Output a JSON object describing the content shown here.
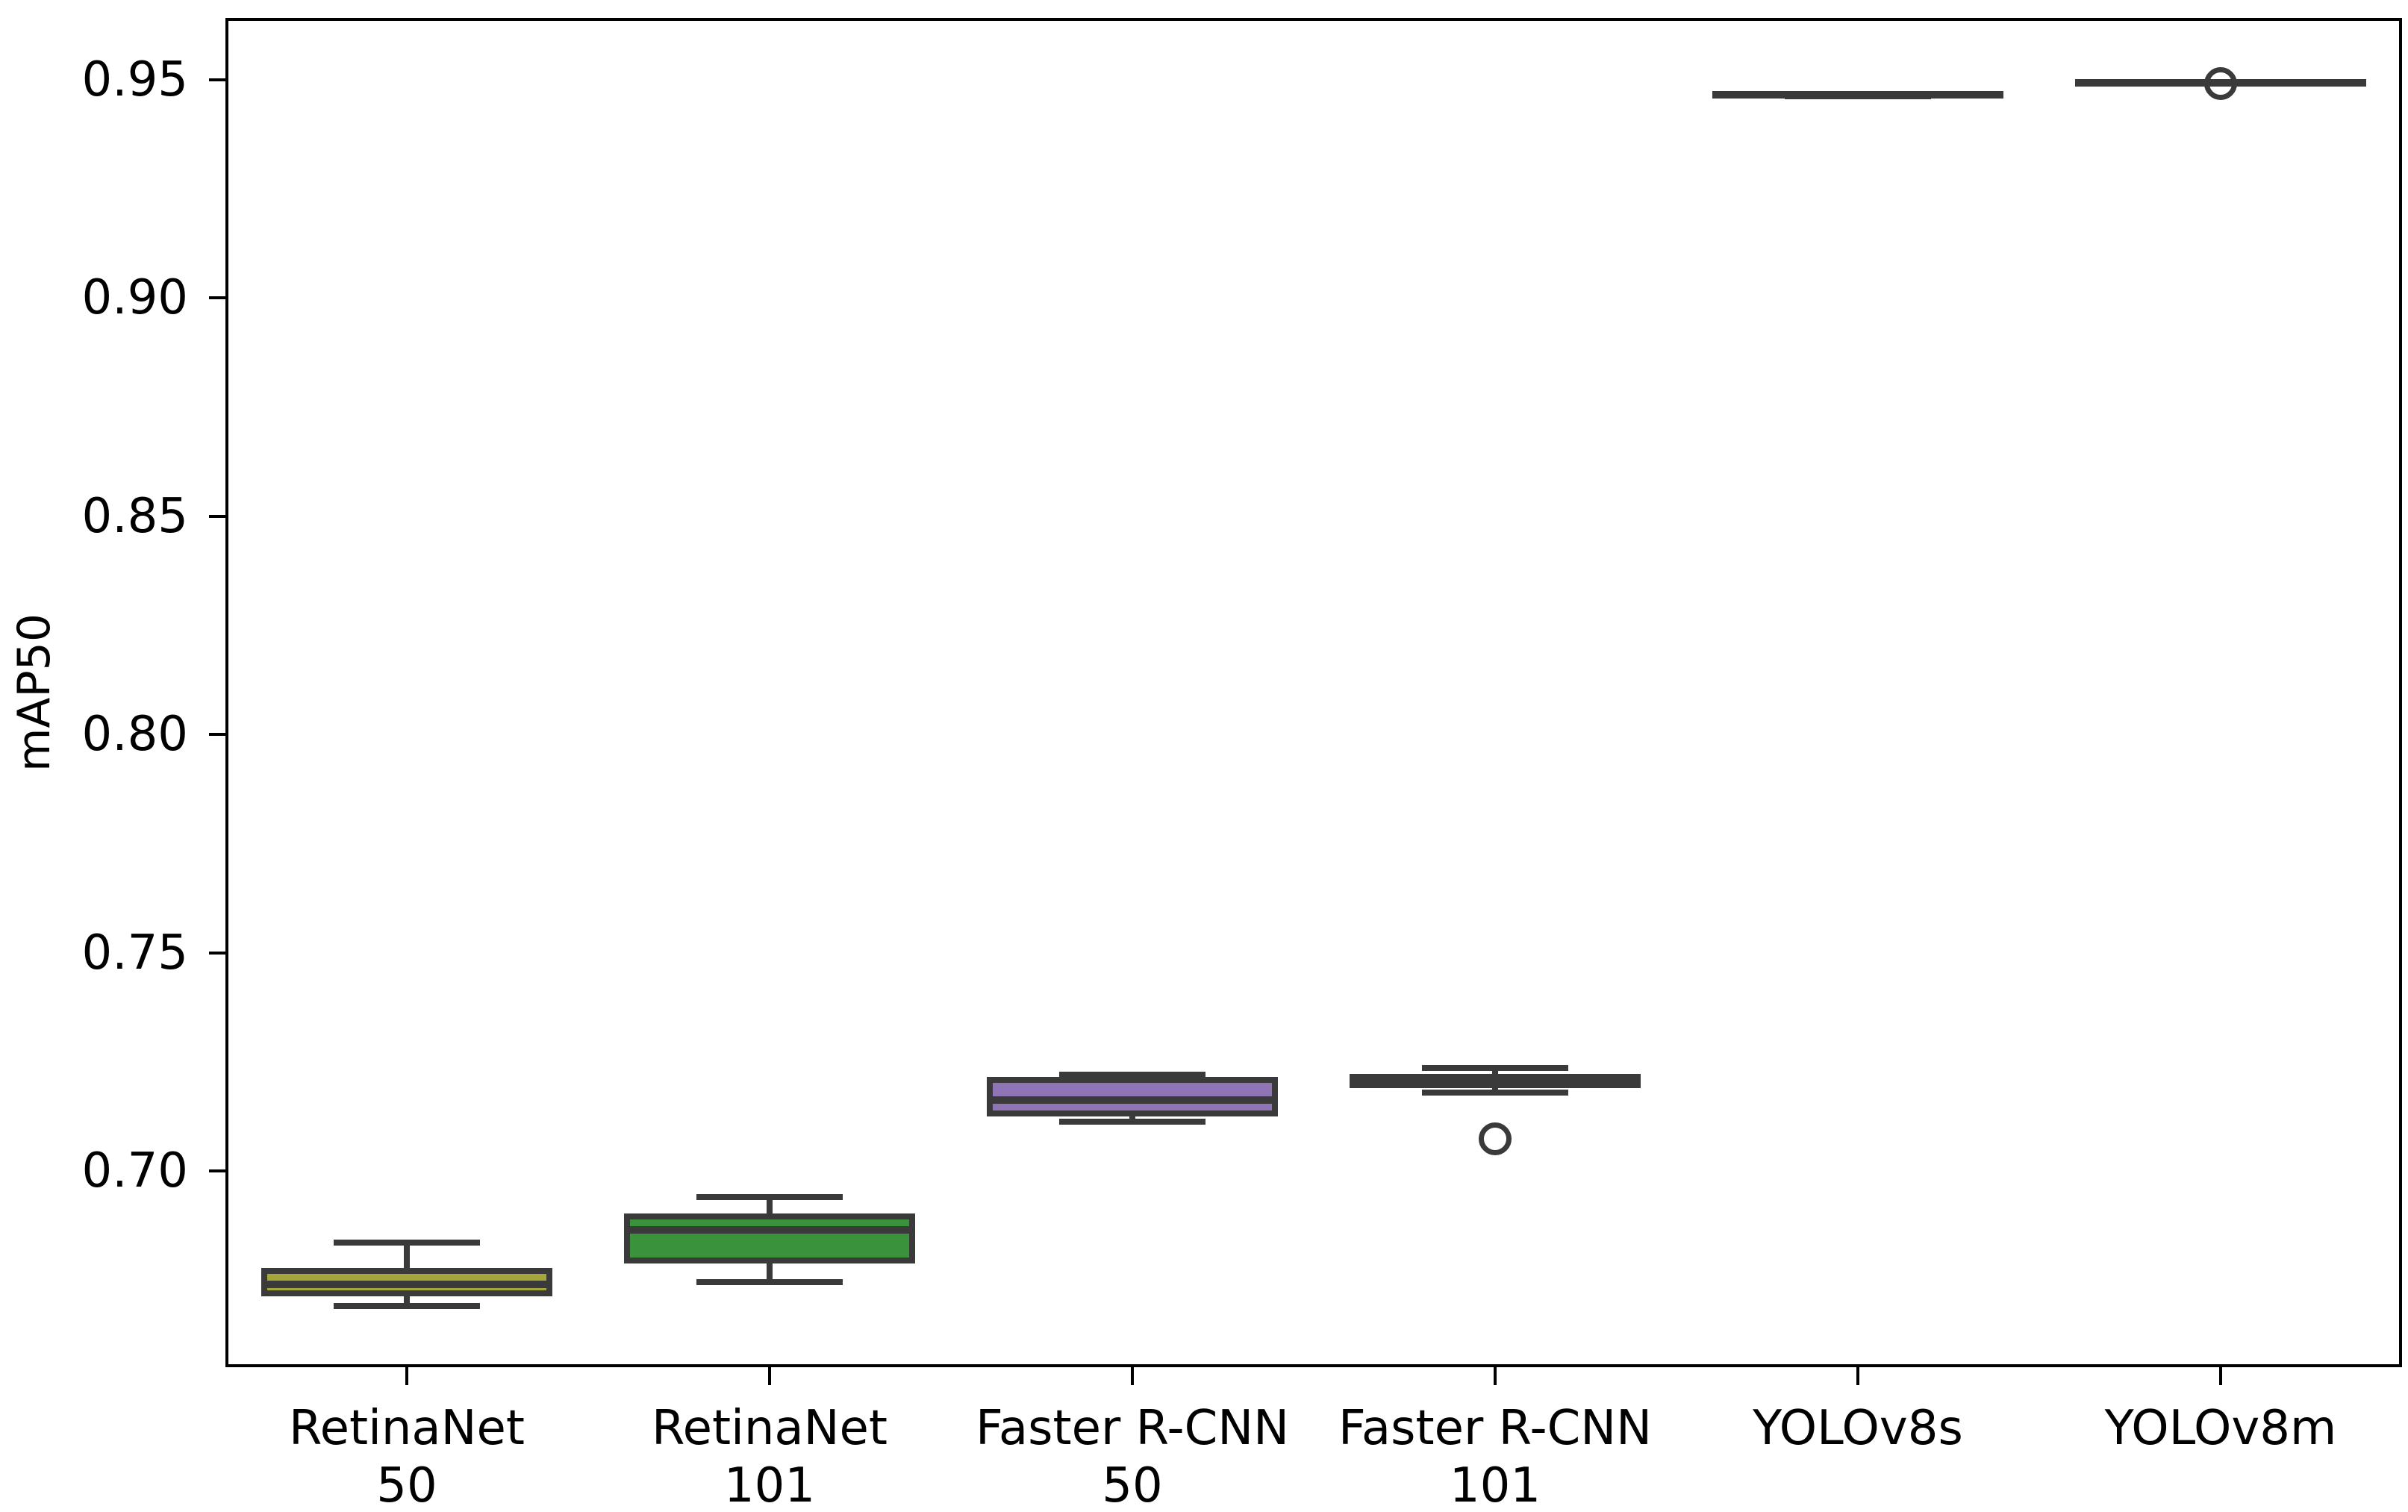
{
  "figure": {
    "background": "#ffffff",
    "text_color": "#000000",
    "spine_color": "#000000",
    "box_line_color": "#3a3a3a"
  },
  "chart_data": {
    "type": "boxplot",
    "title": "",
    "xlabel": "",
    "ylabel": "mAP50",
    "ylim": [
      0.655,
      0.9642
    ],
    "grid": false,
    "legend": null,
    "yticks": [
      {
        "value": 0.7,
        "label": "0.70"
      },
      {
        "value": 0.75,
        "label": "0.75"
      },
      {
        "value": 0.8,
        "label": "0.80"
      },
      {
        "value": 0.85,
        "label": "0.85"
      },
      {
        "value": 0.9,
        "label": "0.90"
      },
      {
        "value": 0.95,
        "label": "0.95"
      }
    ],
    "categories": [
      "RetinaNet\n50",
      "RetinaNet\n101",
      "Faster R-CNN\n50",
      "Faster R-CNN\n101",
      "YOLOv8s",
      "YOLOv8m"
    ],
    "series": [
      {
        "label": "RetinaNet 50",
        "fill_color": "#a4a63a",
        "whisker_low": 0.669,
        "q1": 0.672,
        "median": 0.674,
        "q3": 0.677,
        "whisker_high": 0.6835,
        "outliers": []
      },
      {
        "label": "RetinaNet 101",
        "fill_color": "#3a923c",
        "whisker_low": 0.6745,
        "q1": 0.6795,
        "median": 0.6865,
        "q3": 0.6895,
        "whisker_high": 0.694,
        "outliers": []
      },
      {
        "label": "Faster R-CNN 50",
        "fill_color": "#8f75b5",
        "whisker_low": 0.7112,
        "q1": 0.7131,
        "median": 0.7163,
        "q3": 0.7208,
        "whisker_high": 0.7221,
        "outliers": []
      },
      {
        "label": "Faster R-CNN 101",
        "fill_color": "#3a3a3a",
        "whisker_low": 0.718,
        "q1": 0.7196,
        "median": 0.721,
        "q3": 0.7216,
        "whisker_high": 0.7235,
        "outliers": [
          0.7074
        ]
      },
      {
        "label": "YOLOv8s",
        "fill_color": "#3a3a3a",
        "whisker_low": 0.9462,
        "q1": 0.9464,
        "median": 0.9465,
        "q3": 0.9466,
        "whisker_high": 0.9468,
        "outliers": []
      },
      {
        "label": "YOLOv8m",
        "fill_color": "#3a3a3a",
        "whisker_low": 0.9491,
        "q1": 0.9492,
        "median": 0.9493,
        "q3": 0.9494,
        "whisker_high": 0.9495,
        "outliers": [
          0.9491
        ]
      }
    ]
  }
}
